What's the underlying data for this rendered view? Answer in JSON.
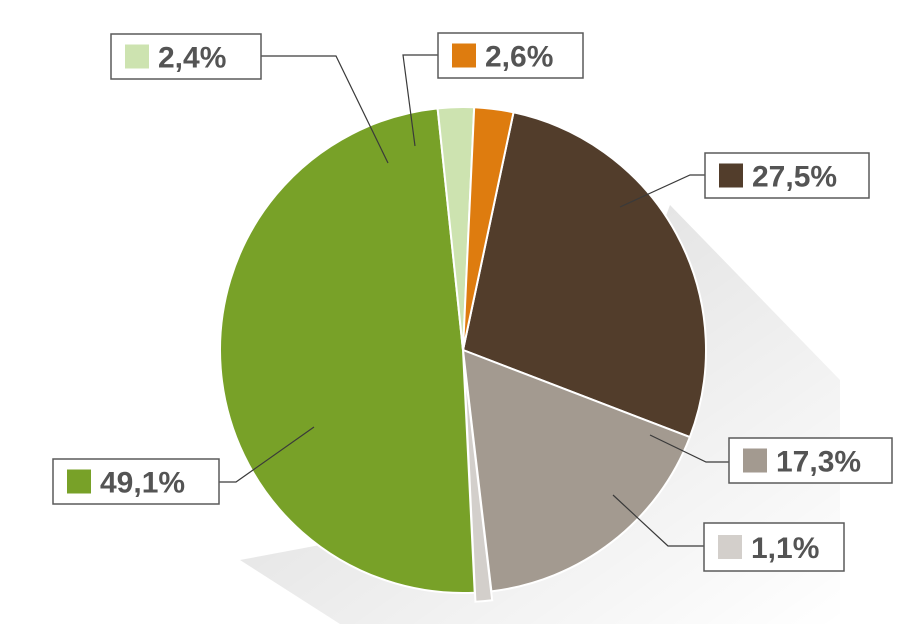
{
  "chart_data": {
    "type": "pie",
    "labels": [
      "27,5%",
      "17,3%",
      "1,1%",
      "49,1%",
      "2,4%",
      "2,6%"
    ],
    "values": [
      27.5,
      17.3,
      1.1,
      49.1,
      2.4,
      2.6
    ],
    "slice_order": "clockwise from about 12 o'clock",
    "series": [
      {
        "label": "27,5%",
        "value": 27.5,
        "color": "#523d2b"
      },
      {
        "label": "17,3%",
        "value": 17.3,
        "color": "#a39a90"
      },
      {
        "label": "1,1%",
        "value": 1.1,
        "color": "#d3cfcb"
      },
      {
        "label": "49,1%",
        "value": 49.1,
        "color": "#78a128"
      },
      {
        "label": "2,4%",
        "value": 2.4,
        "color": "#cde3b0"
      },
      {
        "label": "2,6%",
        "value": 2.6,
        "color": "#de7c0f"
      }
    ],
    "legend": "none",
    "grid": false,
    "shadow": true
  }
}
